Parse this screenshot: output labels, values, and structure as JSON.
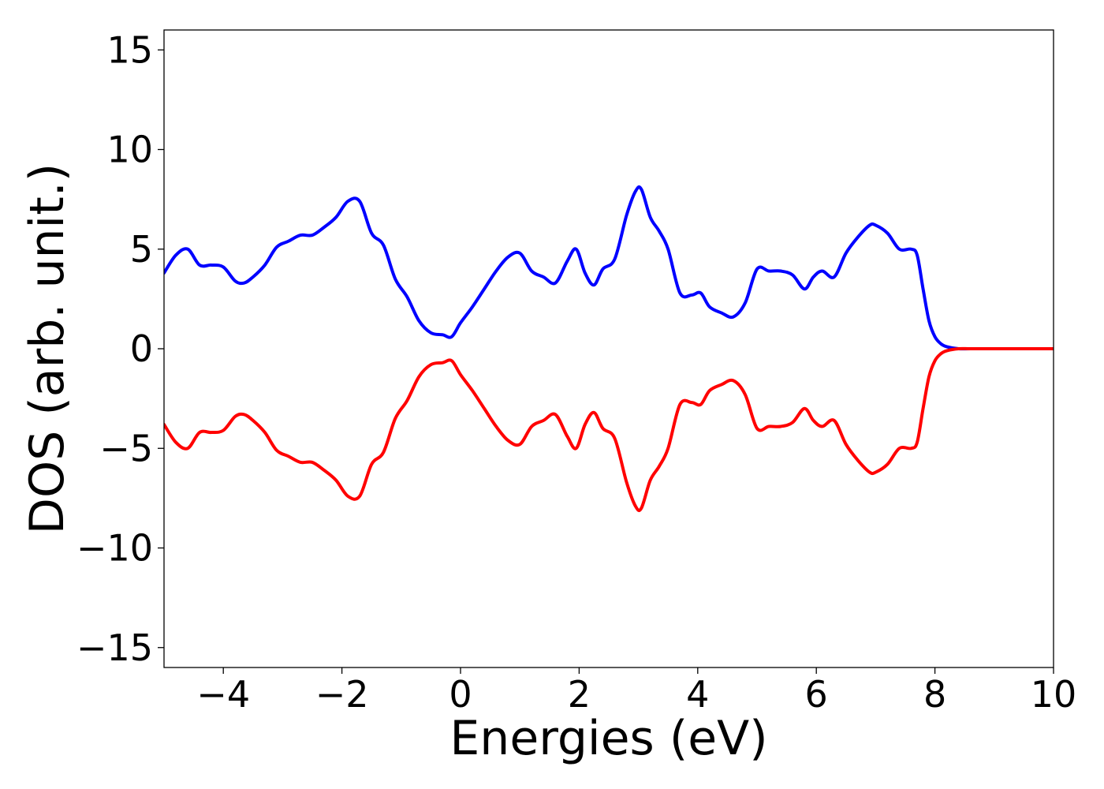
{
  "chart_data": {
    "type": "line",
    "title": "",
    "xlabel": "Energies (eV)",
    "ylabel": "DOS (arb. unit.)",
    "xlim": [
      -5,
      10
    ],
    "ylim": [
      -16,
      16
    ],
    "grid": false,
    "legend": "none",
    "x_ticks": [
      -4,
      -2,
      0,
      2,
      4,
      6,
      8,
      10
    ],
    "x_tick_labels": [
      "−4",
      "−2",
      "0",
      "2",
      "4",
      "6",
      "8",
      "10"
    ],
    "y_ticks": [
      15,
      10,
      5,
      0,
      -5,
      -10,
      -15
    ],
    "y_tick_labels": [
      "15",
      "10",
      "5",
      "0",
      "−5",
      "−10",
      "−15"
    ],
    "series": [
      {
        "color": "#0000ff",
        "x": [
          -5.0,
          -4.8,
          -4.6,
          -4.4,
          -4.2,
          -4.0,
          -3.8,
          -3.65,
          -3.5,
          -3.3,
          -3.1,
          -2.9,
          -2.7,
          -2.5,
          -2.3,
          -2.1,
          -1.9,
          -1.7,
          -1.5,
          -1.3,
          -1.1,
          -0.9,
          -0.7,
          -0.5,
          -0.3,
          -0.15,
          0.0,
          0.2,
          0.4,
          0.6,
          0.8,
          1.0,
          1.2,
          1.4,
          1.6,
          1.8,
          1.95,
          2.1,
          2.25,
          2.4,
          2.6,
          2.8,
          2.95,
          3.05,
          3.2,
          3.35,
          3.5,
          3.7,
          3.9,
          4.05,
          4.2,
          4.4,
          4.6,
          4.8,
          5.0,
          5.2,
          5.4,
          5.6,
          5.8,
          5.95,
          6.1,
          6.3,
          6.5,
          6.7,
          6.9,
          7.0,
          7.2,
          7.4,
          7.6,
          7.7,
          7.8,
          7.9,
          8.0,
          8.1,
          8.2,
          8.4,
          8.6,
          9.0,
          9.5,
          10.0
        ],
        "y": [
          3.8,
          4.7,
          5.0,
          4.2,
          4.2,
          4.1,
          3.4,
          3.3,
          3.6,
          4.2,
          5.1,
          5.4,
          5.7,
          5.7,
          6.1,
          6.6,
          7.4,
          7.4,
          5.8,
          5.2,
          3.5,
          2.6,
          1.4,
          0.8,
          0.7,
          0.6,
          1.3,
          2.1,
          3.0,
          3.9,
          4.6,
          4.8,
          3.9,
          3.6,
          3.3,
          4.4,
          5.0,
          3.8,
          3.2,
          4.0,
          4.5,
          6.7,
          7.9,
          8.0,
          6.6,
          5.9,
          5.0,
          2.8,
          2.7,
          2.8,
          2.1,
          1.8,
          1.6,
          2.3,
          4.0,
          3.9,
          3.9,
          3.7,
          3.0,
          3.6,
          3.9,
          3.6,
          4.8,
          5.6,
          6.2,
          6.2,
          5.8,
          5.0,
          5.0,
          4.7,
          3.0,
          1.4,
          0.6,
          0.25,
          0.1,
          0.0,
          0.0,
          0.0,
          0.0,
          0.0
        ]
      },
      {
        "color": "#ff0000",
        "x": [
          -5.0,
          -4.8,
          -4.6,
          -4.4,
          -4.2,
          -4.0,
          -3.8,
          -3.65,
          -3.5,
          -3.3,
          -3.1,
          -2.9,
          -2.7,
          -2.5,
          -2.3,
          -2.1,
          -1.9,
          -1.7,
          -1.5,
          -1.3,
          -1.1,
          -0.9,
          -0.7,
          -0.5,
          -0.3,
          -0.15,
          0.0,
          0.2,
          0.4,
          0.6,
          0.8,
          1.0,
          1.2,
          1.4,
          1.6,
          1.8,
          1.95,
          2.1,
          2.25,
          2.4,
          2.6,
          2.8,
          2.95,
          3.05,
          3.2,
          3.35,
          3.5,
          3.7,
          3.9,
          4.05,
          4.2,
          4.4,
          4.6,
          4.8,
          5.0,
          5.2,
          5.4,
          5.6,
          5.8,
          5.95,
          6.1,
          6.3,
          6.5,
          6.7,
          6.9,
          7.0,
          7.2,
          7.4,
          7.6,
          7.7,
          7.8,
          7.9,
          8.0,
          8.1,
          8.2,
          8.4,
          8.6,
          9.0,
          9.5,
          10.0
        ],
        "y": [
          -3.8,
          -4.7,
          -5.0,
          -4.2,
          -4.2,
          -4.1,
          -3.4,
          -3.3,
          -3.6,
          -4.2,
          -5.1,
          -5.4,
          -5.7,
          -5.7,
          -6.1,
          -6.6,
          -7.4,
          -7.4,
          -5.8,
          -5.2,
          -3.5,
          -2.6,
          -1.4,
          -0.8,
          -0.7,
          -0.6,
          -1.3,
          -2.1,
          -3.0,
          -3.9,
          -4.6,
          -4.8,
          -3.9,
          -3.6,
          -3.3,
          -4.4,
          -5.0,
          -3.8,
          -3.2,
          -4.0,
          -4.5,
          -6.7,
          -7.9,
          -8.0,
          -6.6,
          -5.9,
          -5.0,
          -2.8,
          -2.7,
          -2.8,
          -2.1,
          -1.8,
          -1.6,
          -2.3,
          -4.0,
          -3.9,
          -3.9,
          -3.7,
          -3.0,
          -3.6,
          -3.9,
          -3.6,
          -4.8,
          -5.6,
          -6.2,
          -6.2,
          -5.8,
          -5.0,
          -5.0,
          -4.7,
          -3.0,
          -1.4,
          -0.6,
          -0.25,
          -0.1,
          0.0,
          0.0,
          0.0,
          0.0,
          0.0
        ]
      }
    ]
  }
}
